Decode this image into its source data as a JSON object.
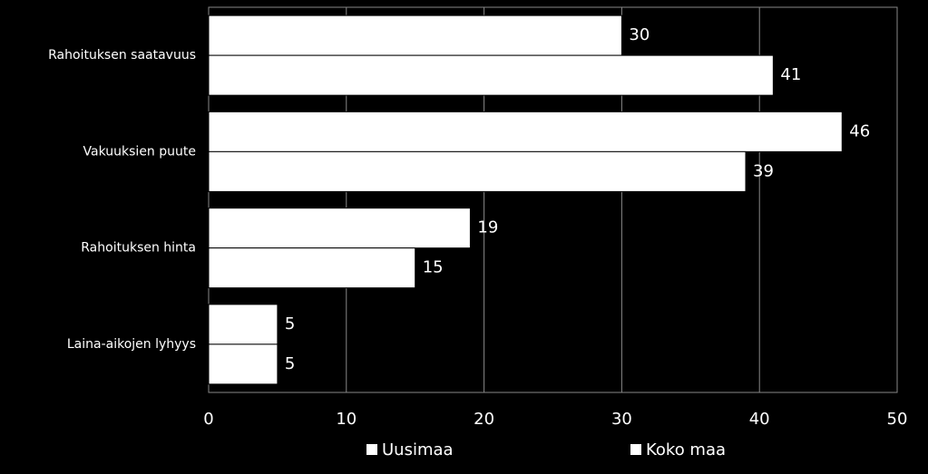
{
  "chart_data": {
    "type": "hbar",
    "categories": [
      "Rahoituksen saatavuus",
      "Vakuuksien puute",
      "Rahoituksen hinta",
      "Laina-aikojen lyhyys"
    ],
    "series": [
      {
        "name": "Uusimaa",
        "color": "#ffffff",
        "values": [
          30,
          46,
          19,
          5
        ]
      },
      {
        "name": "Koko maa",
        "color": "#ffffff",
        "values": [
          41,
          39,
          15,
          5
        ]
      }
    ],
    "xlim": [
      0,
      50
    ],
    "xticks": [
      0,
      10,
      20,
      30,
      40,
      50
    ],
    "grid": true,
    "legend": "bottom"
  }
}
